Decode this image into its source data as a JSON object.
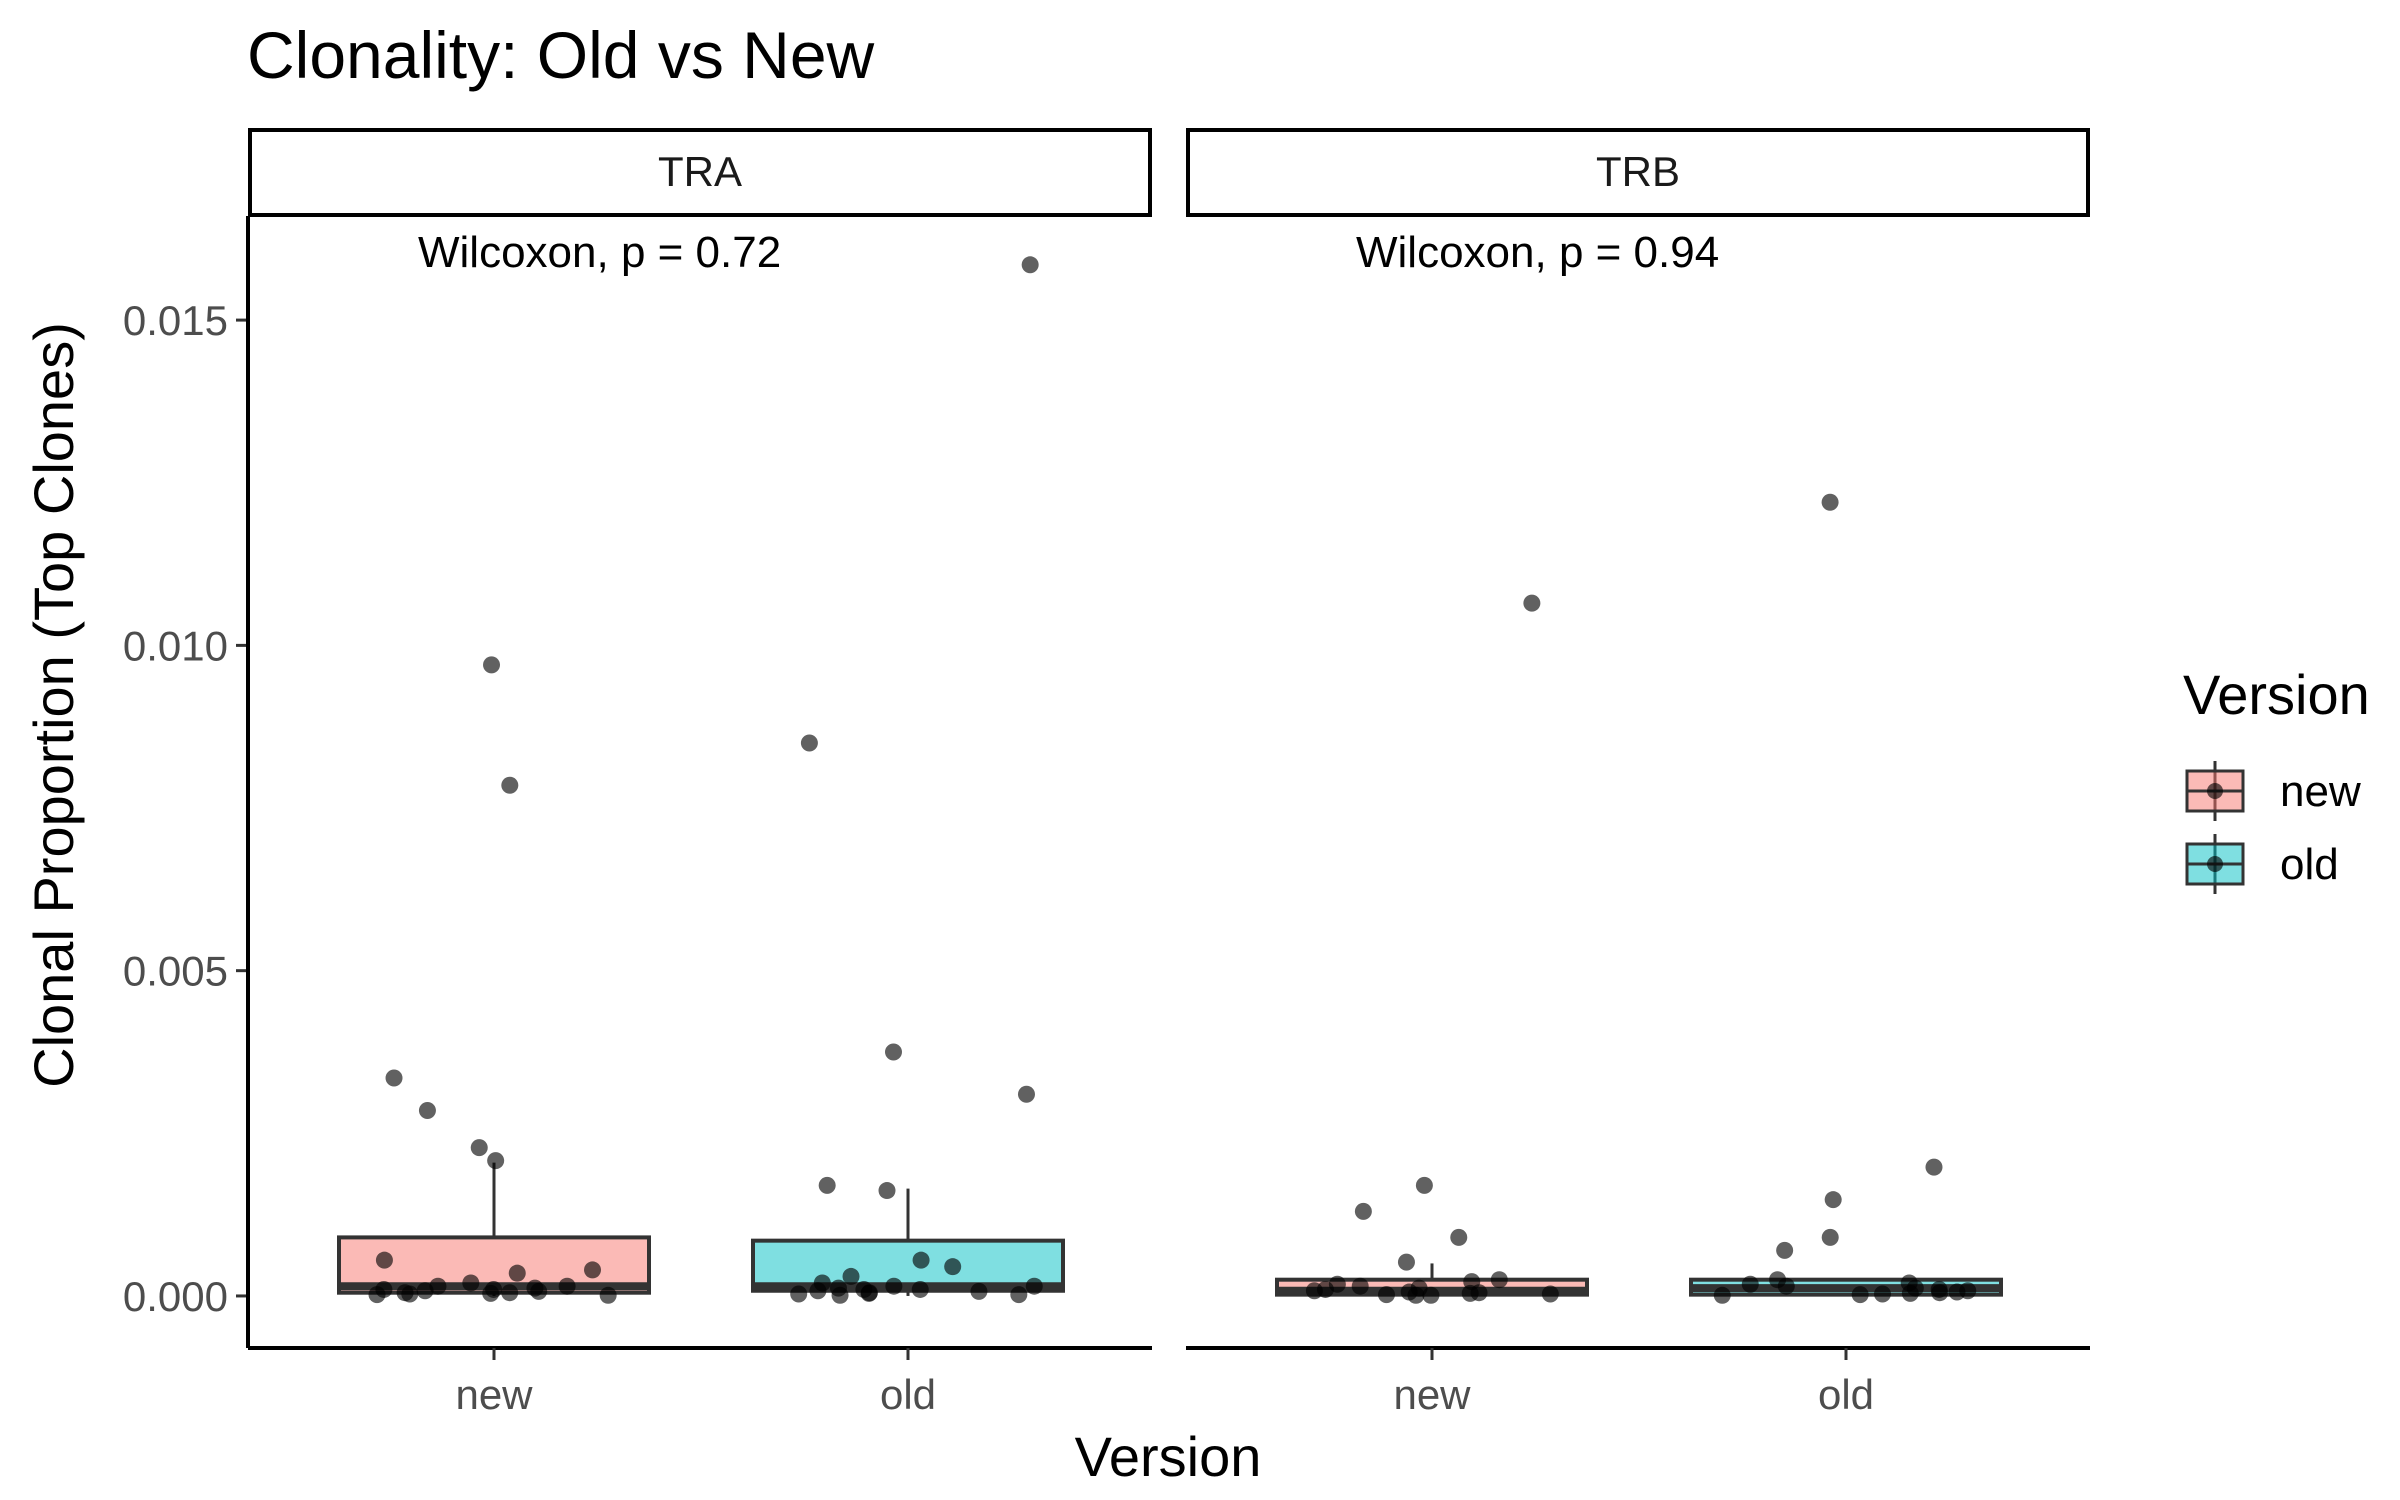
{
  "chart_data": {
    "type": "box",
    "title": "Clonality: Old vs New",
    "xlabel": "Version",
    "ylabel": "Clonal Proportion (Top Clones)",
    "ylim": [
      -0.0008,
      0.0166
    ],
    "yticks": [
      0.0,
      0.005,
      0.01,
      0.015
    ],
    "ytick_labels": [
      "0.000",
      "0.005",
      "0.010",
      "0.015"
    ],
    "categories": [
      "new",
      "old"
    ],
    "grid": false,
    "legend": {
      "title": "Version",
      "position": "right",
      "items": [
        {
          "label": "new",
          "color": "#F8766D"
        },
        {
          "label": "old",
          "color": "#00BFC4"
        }
      ]
    },
    "panels": [
      {
        "facet": "TRA",
        "annotation": "Wilcoxon, p = 0.72",
        "boxes": [
          {
            "category": "new",
            "color": "#F8766D",
            "q1": 5e-05,
            "median": 0.00015,
            "q3": 0.0009,
            "whisker_low": 0.0,
            "whisker_high": 0.00205,
            "points": [
              0.0097,
              0.00785,
              0.00335,
              0.00285,
              0.00228,
              0.00208,
              0.00055,
              0.0004,
              0.00035,
              0.0002,
              0.00015,
              0.00015,
              0.00012,
              0.0001,
              0.0001,
              8e-05,
              7e-05,
              5e-05,
              5e-05,
              4e-05,
              3e-05,
              2e-05,
              1e-05
            ]
          },
          {
            "category": "old",
            "color": "#00BFC4",
            "q1": 8e-05,
            "median": 0.00015,
            "q3": 0.00085,
            "whisker_low": 0.0,
            "whisker_high": 0.00165,
            "points": [
              0.01585,
              0.0085,
              0.00375,
              0.0031,
              0.0017,
              0.00162,
              0.00055,
              0.00045,
              0.0003,
              0.0002,
              0.00015,
              0.00015,
              0.00012,
              0.0001,
              0.0001,
              8e-05,
              7e-05,
              5e-05,
              4e-05,
              3e-05,
              2e-05,
              1e-05
            ]
          }
        ]
      },
      {
        "facet": "TRB",
        "annotation": "Wilcoxon, p = 0.94",
        "boxes": [
          {
            "category": "new",
            "color": "#F8766D",
            "q1": 2e-05,
            "median": 8e-05,
            "q3": 0.00025,
            "whisker_low": 0.0,
            "whisker_high": 0.0005,
            "points": [
              0.01065,
              0.0017,
              0.0013,
              0.0009,
              0.00052,
              0.00025,
              0.00022,
              0.00018,
              0.00015,
              0.00012,
              0.0001,
              8e-05,
              6e-05,
              5e-05,
              4e-05,
              3e-05,
              2e-05,
              1e-05,
              1e-05
            ]
          },
          {
            "category": "old",
            "color": "#00BFC4",
            "q1": 2e-05,
            "median": 0.00012,
            "q3": 0.00025,
            "whisker_low": 0.0,
            "whisker_high": 0.00025,
            "points": [
              0.0122,
              0.00198,
              0.00148,
              0.0009,
              0.0007,
              0.00025,
              0.0002,
              0.00018,
              0.00015,
              0.00012,
              0.0001,
              8e-05,
              6e-05,
              5e-05,
              4e-05,
              3e-05,
              2e-05,
              1e-05
            ]
          }
        ]
      }
    ]
  }
}
